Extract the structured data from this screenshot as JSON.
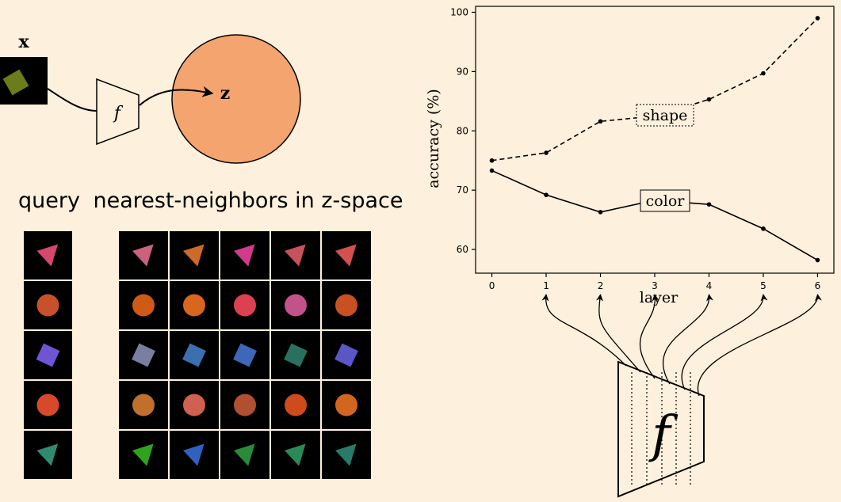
{
  "diagram": {
    "input_label": "x",
    "encoder_label": "f",
    "latent_label": "z",
    "input_colors": {
      "background": "#000000",
      "shape": "#6b7c1a"
    },
    "latent_fill": "#f4a46e",
    "query_heading": "query",
    "neighbors_heading": "nearest-neighbors in z-space",
    "bottom_encoder_label": "f"
  },
  "grid": {
    "query": [
      {
        "shape": "triangle",
        "color": "#d4476e"
      },
      {
        "shape": "circle",
        "color": "#c8512a"
      },
      {
        "shape": "square",
        "color": "#6f55d4"
      },
      {
        "shape": "circle",
        "color": "#d8482a"
      },
      {
        "shape": "triangle",
        "color": "#2f8a72"
      }
    ],
    "neighbors": [
      [
        {
          "shape": "triangle",
          "color": "#c9627f"
        },
        {
          "shape": "triangle",
          "color": "#cc6a2a"
        },
        {
          "shape": "triangle",
          "color": "#d13a8d"
        },
        {
          "shape": "triangle",
          "color": "#c8525c"
        },
        {
          "shape": "triangle",
          "color": "#d2504e"
        }
      ],
      [
        {
          "shape": "circle",
          "color": "#cf5a16"
        },
        {
          "shape": "circle",
          "color": "#d9661e"
        },
        {
          "shape": "circle",
          "color": "#dc4152"
        },
        {
          "shape": "circle",
          "color": "#c4528a"
        },
        {
          "shape": "circle",
          "color": "#c95020"
        }
      ],
      [
        {
          "shape": "square",
          "color": "#7a7ea0"
        },
        {
          "shape": "square",
          "color": "#3c6fb2"
        },
        {
          "shape": "square",
          "color": "#3d67b8"
        },
        {
          "shape": "square",
          "color": "#2a7060"
        },
        {
          "shape": "square",
          "color": "#5a56c6"
        }
      ],
      [
        {
          "shape": "circle",
          "color": "#c0702a"
        },
        {
          "shape": "circle",
          "color": "#d06050"
        },
        {
          "shape": "circle",
          "color": "#b05030"
        },
        {
          "shape": "circle",
          "color": "#cf4a1c"
        },
        {
          "shape": "circle",
          "color": "#d2661e"
        }
      ],
      [
        {
          "shape": "triangle",
          "color": "#2ea41e"
        },
        {
          "shape": "triangle",
          "color": "#3060c0"
        },
        {
          "shape": "triangle",
          "color": "#2a8a3a"
        },
        {
          "shape": "triangle",
          "color": "#2a8a56"
        },
        {
          "shape": "triangle",
          "color": "#2a7a6a"
        }
      ]
    ]
  },
  "chart_data": {
    "type": "line",
    "xlabel": "layer",
    "ylabel": "accuracy (%)",
    "x": [
      0,
      1,
      2,
      3,
      4,
      5,
      6
    ],
    "xlim": [
      -0.3,
      6.3
    ],
    "ylim": [
      56,
      101
    ],
    "xticks": [
      "0",
      "1",
      "2",
      "3",
      "4",
      "5",
      "6"
    ],
    "yticks": [
      60,
      70,
      80,
      90,
      100
    ],
    "grid": false,
    "series": [
      {
        "name": "shape",
        "style": "dashed",
        "values": [
          75.0,
          76.3,
          81.6,
          82.5,
          85.3,
          89.7,
          99.0
        ]
      },
      {
        "name": "color",
        "style": "solid",
        "values": [
          73.3,
          69.2,
          66.3,
          68.3,
          67.6,
          63.5,
          58.2
        ]
      }
    ],
    "annotations": [
      {
        "text": "shape",
        "box": "dotted"
      },
      {
        "text": "color",
        "box": "solid"
      }
    ]
  }
}
